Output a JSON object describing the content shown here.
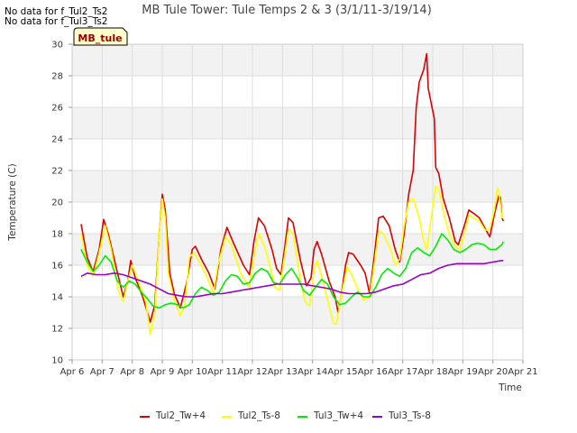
{
  "notes": [
    "No data for f_Tul2_Ts2",
    "No data for f_Tul3_Ts2"
  ],
  "badge": "MB_tule",
  "colors": {
    "band": "#f2f2f2",
    "grid": "#dddddd",
    "axis": "#cccccc",
    "badge_bg": "#ffffcc",
    "badge_text": "#990000"
  },
  "chart_data": {
    "type": "line",
    "title": "MB Tule Tower: Tule Temps 2 & 3 (3/1/11-3/19/14)",
    "xlabel": "Time",
    "ylabel": "Temperature (C)",
    "xlim": [
      6,
      21
    ],
    "ylim": [
      10,
      30
    ],
    "xticks": [
      6,
      7,
      8,
      9,
      10,
      11,
      12,
      13,
      14,
      15,
      16,
      17,
      18,
      19,
      20,
      21
    ],
    "xtick_labels": [
      "Apr 6",
      "Apr 7",
      "Apr 8",
      "Apr 9",
      "Apr 10",
      "Apr 11",
      "Apr 12",
      "Apr 13",
      "Apr 14",
      "Apr 15",
      "Apr 16",
      "Apr 17",
      "Apr 18",
      "Apr 19",
      "Apr 20",
      "Apr 21"
    ],
    "yticks": [
      10,
      12,
      14,
      16,
      18,
      20,
      22,
      24,
      26,
      28,
      30
    ],
    "legend_position": "bottom",
    "series": [
      {
        "name": "Tul2_Tw+4",
        "color": "#dd0000",
        "points": [
          [
            6.3,
            18.6
          ],
          [
            6.5,
            16.5
          ],
          [
            6.7,
            15.6
          ],
          [
            6.9,
            17.0
          ],
          [
            7.05,
            18.9
          ],
          [
            7.2,
            18.0
          ],
          [
            7.45,
            16.0
          ],
          [
            7.7,
            14.0
          ],
          [
            7.85,
            15.0
          ],
          [
            7.95,
            16.3
          ],
          [
            8.1,
            15.2
          ],
          [
            8.35,
            14.0
          ],
          [
            8.6,
            12.4
          ],
          [
            8.75,
            13.5
          ],
          [
            8.9,
            18.0
          ],
          [
            9.0,
            20.5
          ],
          [
            9.1,
            19.5
          ],
          [
            9.25,
            15.5
          ],
          [
            9.4,
            14.2
          ],
          [
            9.6,
            13.3
          ],
          [
            9.8,
            14.8
          ],
          [
            10.0,
            17.0
          ],
          [
            10.1,
            17.2
          ],
          [
            10.3,
            16.4
          ],
          [
            10.55,
            15.5
          ],
          [
            10.75,
            14.5
          ],
          [
            10.95,
            17.0
          ],
          [
            11.15,
            18.4
          ],
          [
            11.35,
            17.5
          ],
          [
            11.7,
            16.0
          ],
          [
            11.9,
            15.4
          ],
          [
            12.05,
            17.5
          ],
          [
            12.2,
            19.0
          ],
          [
            12.4,
            18.5
          ],
          [
            12.65,
            17.0
          ],
          [
            12.8,
            15.8
          ],
          [
            12.95,
            15.4
          ],
          [
            13.1,
            17.5
          ],
          [
            13.2,
            19.0
          ],
          [
            13.35,
            18.7
          ],
          [
            13.6,
            16.3
          ],
          [
            13.8,
            14.7
          ],
          [
            13.95,
            15.2
          ],
          [
            14.05,
            17.0
          ],
          [
            14.15,
            17.5
          ],
          [
            14.3,
            16.7
          ],
          [
            14.55,
            15.0
          ],
          [
            14.75,
            14.0
          ],
          [
            14.85,
            13.0
          ],
          [
            14.95,
            14.0
          ],
          [
            15.1,
            16.0
          ],
          [
            15.2,
            16.8
          ],
          [
            15.35,
            16.7
          ],
          [
            15.6,
            16.0
          ],
          [
            15.75,
            15.5
          ],
          [
            15.9,
            14.2
          ],
          [
            16.05,
            16.5
          ],
          [
            16.2,
            19.0
          ],
          [
            16.35,
            19.1
          ],
          [
            16.55,
            18.5
          ],
          [
            16.75,
            17.0
          ],
          [
            16.9,
            16.2
          ],
          [
            17.05,
            18.0
          ],
          [
            17.2,
            20.5
          ],
          [
            17.35,
            22.0
          ],
          [
            17.45,
            26.0
          ],
          [
            17.55,
            27.6
          ],
          [
            17.7,
            28.4
          ],
          [
            17.8,
            29.4
          ],
          [
            17.85,
            27.2
          ],
          [
            18.05,
            25.3
          ],
          [
            18.1,
            22.2
          ],
          [
            18.2,
            21.8
          ],
          [
            18.35,
            20.2
          ],
          [
            18.55,
            19.0
          ],
          [
            18.75,
            17.5
          ],
          [
            18.85,
            17.3
          ],
          [
            19.05,
            18.5
          ],
          [
            19.2,
            19.5
          ],
          [
            19.35,
            19.3
          ],
          [
            19.55,
            19.0
          ],
          [
            19.75,
            18.3
          ],
          [
            19.9,
            17.8
          ],
          [
            20.05,
            19.2
          ],
          [
            20.2,
            20.4
          ],
          [
            20.25,
            20.3
          ],
          [
            20.3,
            19.0
          ],
          [
            20.35,
            18.8
          ]
        ]
      },
      {
        "name": "Tul2_Ts-8",
        "color": "#ffff00",
        "points": [
          [
            6.3,
            18.0
          ],
          [
            6.5,
            16.0
          ],
          [
            6.7,
            15.3
          ],
          [
            6.9,
            16.8
          ],
          [
            7.1,
            18.5
          ],
          [
            7.3,
            17.0
          ],
          [
            7.55,
            14.3
          ],
          [
            7.7,
            13.7
          ],
          [
            7.85,
            15.0
          ],
          [
            8.0,
            16.0
          ],
          [
            8.2,
            15.0
          ],
          [
            8.45,
            13.7
          ],
          [
            8.6,
            11.6
          ],
          [
            8.75,
            13.0
          ],
          [
            8.9,
            18.0
          ],
          [
            9.0,
            20.2
          ],
          [
            9.1,
            19.0
          ],
          [
            9.2,
            15.5
          ],
          [
            9.4,
            13.8
          ],
          [
            9.6,
            12.8
          ],
          [
            9.75,
            13.5
          ],
          [
            9.9,
            16.5
          ],
          [
            10.05,
            16.8
          ],
          [
            10.3,
            16.0
          ],
          [
            10.5,
            15.2
          ],
          [
            10.7,
            14.2
          ],
          [
            10.85,
            16.0
          ],
          [
            11.1,
            17.8
          ],
          [
            11.3,
            17.3
          ],
          [
            11.6,
            15.5
          ],
          [
            11.9,
            14.6
          ],
          [
            12.05,
            16.5
          ],
          [
            12.2,
            18.0
          ],
          [
            12.4,
            17.2
          ],
          [
            12.6,
            15.8
          ],
          [
            12.75,
            14.6
          ],
          [
            12.9,
            14.4
          ],
          [
            13.1,
            17.0
          ],
          [
            13.2,
            18.3
          ],
          [
            13.35,
            18.0
          ],
          [
            13.6,
            15.0
          ],
          [
            13.75,
            13.7
          ],
          [
            13.9,
            13.4
          ],
          [
            14.05,
            15.6
          ],
          [
            14.15,
            16.3
          ],
          [
            14.3,
            15.3
          ],
          [
            14.5,
            13.8
          ],
          [
            14.7,
            12.3
          ],
          [
            14.8,
            12.3
          ],
          [
            14.95,
            14.0
          ],
          [
            15.15,
            15.9
          ],
          [
            15.3,
            15.4
          ],
          [
            15.5,
            14.5
          ],
          [
            15.7,
            13.8
          ],
          [
            15.9,
            14.0
          ],
          [
            16.05,
            16.0
          ],
          [
            16.2,
            18.2
          ],
          [
            16.35,
            18.0
          ],
          [
            16.6,
            17.0
          ],
          [
            16.75,
            16.0
          ],
          [
            16.9,
            16.4
          ],
          [
            17.05,
            18.5
          ],
          [
            17.2,
            20.0
          ],
          [
            17.35,
            20.2
          ],
          [
            17.55,
            19.0
          ],
          [
            17.7,
            17.5
          ],
          [
            17.8,
            17.0
          ],
          [
            17.95,
            19.0
          ],
          [
            18.1,
            21.0
          ],
          [
            18.2,
            20.8
          ],
          [
            18.4,
            19.0
          ],
          [
            18.55,
            18.0
          ],
          [
            18.75,
            17.2
          ],
          [
            18.9,
            17.0
          ],
          [
            19.05,
            18.0
          ],
          [
            19.2,
            19.2
          ],
          [
            19.35,
            19.0
          ],
          [
            19.55,
            18.8
          ],
          [
            19.75,
            18.2
          ],
          [
            19.9,
            18.3
          ],
          [
            20.05,
            19.5
          ],
          [
            20.15,
            20.9
          ],
          [
            20.2,
            20.7
          ],
          [
            20.3,
            19.0
          ],
          [
            20.35,
            19.0
          ]
        ]
      },
      {
        "name": "Tul3_Tw+4",
        "color": "#00ee00",
        "points": [
          [
            6.3,
            17.0
          ],
          [
            6.5,
            16.2
          ],
          [
            6.7,
            15.6
          ],
          [
            6.9,
            16.0
          ],
          [
            7.1,
            16.6
          ],
          [
            7.3,
            16.2
          ],
          [
            7.5,
            15.0
          ],
          [
            7.7,
            14.6
          ],
          [
            7.9,
            15.0
          ],
          [
            8.1,
            14.8
          ],
          [
            8.3,
            14.3
          ],
          [
            8.5,
            13.9
          ],
          [
            8.7,
            13.4
          ],
          [
            8.9,
            13.3
          ],
          [
            9.1,
            13.5
          ],
          [
            9.3,
            13.6
          ],
          [
            9.5,
            13.5
          ],
          [
            9.7,
            13.3
          ],
          [
            9.9,
            13.5
          ],
          [
            10.1,
            14.2
          ],
          [
            10.3,
            14.6
          ],
          [
            10.5,
            14.4
          ],
          [
            10.7,
            14.1
          ],
          [
            10.9,
            14.3
          ],
          [
            11.1,
            15.0
          ],
          [
            11.3,
            15.4
          ],
          [
            11.5,
            15.3
          ],
          [
            11.7,
            14.8
          ],
          [
            11.9,
            14.9
          ],
          [
            12.1,
            15.5
          ],
          [
            12.3,
            15.8
          ],
          [
            12.5,
            15.6
          ],
          [
            12.7,
            14.9
          ],
          [
            12.9,
            14.8
          ],
          [
            13.1,
            15.4
          ],
          [
            13.3,
            15.8
          ],
          [
            13.5,
            15.2
          ],
          [
            13.7,
            14.4
          ],
          [
            13.9,
            14.1
          ],
          [
            14.1,
            14.6
          ],
          [
            14.3,
            15.1
          ],
          [
            14.5,
            14.8
          ],
          [
            14.7,
            14.0
          ],
          [
            14.9,
            13.5
          ],
          [
            15.1,
            13.6
          ],
          [
            15.3,
            14.0
          ],
          [
            15.5,
            14.3
          ],
          [
            15.7,
            14.0
          ],
          [
            15.9,
            14.0
          ],
          [
            16.1,
            14.6
          ],
          [
            16.3,
            15.4
          ],
          [
            16.5,
            15.8
          ],
          [
            16.7,
            15.5
          ],
          [
            16.9,
            15.3
          ],
          [
            17.1,
            15.8
          ],
          [
            17.3,
            16.8
          ],
          [
            17.5,
            17.1
          ],
          [
            17.7,
            16.8
          ],
          [
            17.9,
            16.6
          ],
          [
            18.1,
            17.2
          ],
          [
            18.3,
            18.0
          ],
          [
            18.5,
            17.6
          ],
          [
            18.7,
            17.0
          ],
          [
            18.9,
            16.8
          ],
          [
            19.1,
            17.0
          ],
          [
            19.3,
            17.3
          ],
          [
            19.5,
            17.4
          ],
          [
            19.7,
            17.3
          ],
          [
            19.9,
            17.0
          ],
          [
            20.1,
            17.0
          ],
          [
            20.3,
            17.3
          ],
          [
            20.35,
            17.5
          ]
        ]
      },
      {
        "name": "Tul3_Ts-8",
        "color": "#9900cc",
        "points": [
          [
            6.3,
            15.3
          ],
          [
            6.5,
            15.5
          ],
          [
            6.8,
            15.4
          ],
          [
            7.1,
            15.4
          ],
          [
            7.4,
            15.5
          ],
          [
            7.7,
            15.4
          ],
          [
            8.0,
            15.2
          ],
          [
            8.3,
            15.0
          ],
          [
            8.6,
            14.8
          ],
          [
            8.9,
            14.5
          ],
          [
            9.2,
            14.2
          ],
          [
            9.5,
            14.1
          ],
          [
            9.8,
            14.0
          ],
          [
            10.1,
            14.0
          ],
          [
            10.4,
            14.1
          ],
          [
            10.7,
            14.2
          ],
          [
            11.0,
            14.2
          ],
          [
            11.3,
            14.3
          ],
          [
            11.6,
            14.4
          ],
          [
            11.9,
            14.5
          ],
          [
            12.2,
            14.6
          ],
          [
            12.5,
            14.7
          ],
          [
            12.8,
            14.8
          ],
          [
            13.1,
            14.8
          ],
          [
            13.4,
            14.8
          ],
          [
            13.7,
            14.8
          ],
          [
            14.0,
            14.7
          ],
          [
            14.3,
            14.6
          ],
          [
            14.6,
            14.5
          ],
          [
            14.9,
            14.3
          ],
          [
            15.2,
            14.2
          ],
          [
            15.5,
            14.2
          ],
          [
            15.8,
            14.2
          ],
          [
            16.1,
            14.3
          ],
          [
            16.4,
            14.5
          ],
          [
            16.7,
            14.7
          ],
          [
            17.0,
            14.8
          ],
          [
            17.3,
            15.1
          ],
          [
            17.6,
            15.4
          ],
          [
            17.9,
            15.5
          ],
          [
            18.2,
            15.8
          ],
          [
            18.5,
            16.0
          ],
          [
            18.8,
            16.1
          ],
          [
            19.1,
            16.1
          ],
          [
            19.4,
            16.1
          ],
          [
            19.7,
            16.1
          ],
          [
            20.0,
            16.2
          ],
          [
            20.3,
            16.3
          ],
          [
            20.35,
            16.3
          ]
        ]
      }
    ]
  }
}
